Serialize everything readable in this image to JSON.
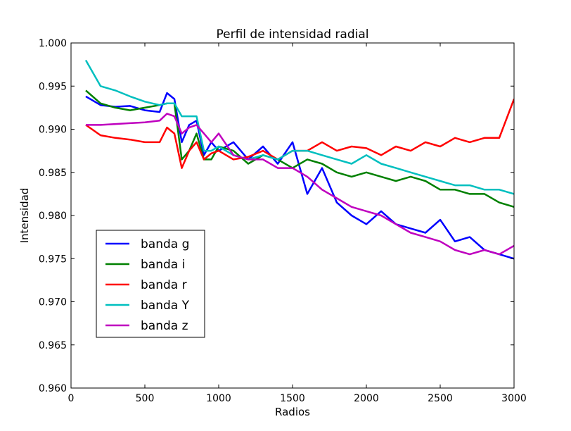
{
  "chart_data": {
    "type": "line",
    "title": "Perfil de intensidad radial",
    "xlabel": "Radios",
    "ylabel": "Intensidad",
    "xlim": [
      0,
      3000
    ],
    "ylim": [
      0.96,
      1.0
    ],
    "xticks": [
      0,
      500,
      1000,
      1500,
      2000,
      2500,
      3000
    ],
    "xtick_labels": [
      "0",
      "500",
      "1000",
      "1500",
      "2000",
      "2500",
      "3000"
    ],
    "yticks": [
      0.96,
      0.965,
      0.97,
      0.975,
      0.98,
      0.985,
      0.99,
      0.995,
      1.0
    ],
    "ytick_labels": [
      "0.960",
      "0.965",
      "0.970",
      "0.975",
      "0.980",
      "0.985",
      "0.990",
      "0.995",
      "1.000"
    ],
    "grid": false,
    "legend_position": "lower-left",
    "x": [
      100,
      200,
      300,
      400,
      500,
      600,
      650,
      700,
      750,
      800,
      850,
      900,
      950,
      1000,
      1100,
      1200,
      1300,
      1400,
      1500,
      1600,
      1700,
      1800,
      1900,
      2000,
      2100,
      2200,
      2300,
      2400,
      2500,
      2600,
      2700,
      2800,
      2900,
      3000
    ],
    "series": [
      {
        "name": "banda g",
        "color": "#0000ff",
        "values": [
          0.9938,
          0.9928,
          0.9926,
          0.9927,
          0.9922,
          0.992,
          0.9942,
          0.9935,
          0.9885,
          0.9905,
          0.991,
          0.987,
          0.9885,
          0.9875,
          0.9885,
          0.9865,
          0.988,
          0.986,
          0.9885,
          0.9825,
          0.9855,
          0.9815,
          0.98,
          0.979,
          0.9805,
          0.979,
          0.9785,
          0.978,
          0.9795,
          0.977,
          0.9775,
          0.976,
          0.9755,
          0.975
        ]
      },
      {
        "name": "banda i",
        "color": "#008000",
        "values": [
          0.9945,
          0.993,
          0.9925,
          0.9922,
          0.9925,
          0.9928,
          0.993,
          0.993,
          0.9865,
          0.9875,
          0.9895,
          0.9865,
          0.9865,
          0.988,
          0.9875,
          0.986,
          0.987,
          0.9865,
          0.9855,
          0.9865,
          0.986,
          0.985,
          0.9845,
          0.985,
          0.9845,
          0.984,
          0.9845,
          0.984,
          0.983,
          0.983,
          0.9825,
          0.9825,
          0.9815,
          0.981
        ]
      },
      {
        "name": "banda r",
        "color": "#ff0000",
        "values": [
          0.9905,
          0.9893,
          0.989,
          0.9888,
          0.9885,
          0.9885,
          0.9902,
          0.9895,
          0.9855,
          0.9875,
          0.9885,
          0.9865,
          0.9872,
          0.9875,
          0.9865,
          0.9868,
          0.9875,
          0.9865,
          0.9875,
          0.9875,
          0.9885,
          0.9875,
          0.988,
          0.9878,
          0.987,
          0.988,
          0.9875,
          0.9885,
          0.988,
          0.989,
          0.9885,
          0.989,
          0.989,
          0.9935
        ]
      },
      {
        "name": "banda Y",
        "color": "#00bfbf",
        "values": [
          0.998,
          0.995,
          0.9945,
          0.9938,
          0.9932,
          0.9928,
          0.993,
          0.993,
          0.9915,
          0.9915,
          0.9915,
          0.9875,
          0.9875,
          0.988,
          0.987,
          0.9865,
          0.987,
          0.9865,
          0.9875,
          0.9875,
          0.987,
          0.9865,
          0.986,
          0.987,
          0.986,
          0.9855,
          0.985,
          0.9845,
          0.984,
          0.9835,
          0.9835,
          0.983,
          0.983,
          0.9825
        ]
      },
      {
        "name": "banda z",
        "color": "#bf00bf",
        "values": [
          0.9905,
          0.9905,
          0.9906,
          0.9907,
          0.9908,
          0.991,
          0.9918,
          0.9915,
          0.9895,
          0.9902,
          0.9905,
          0.9895,
          0.9885,
          0.9895,
          0.987,
          0.9865,
          0.9865,
          0.9855,
          0.9855,
          0.9845,
          0.983,
          0.982,
          0.981,
          0.9805,
          0.98,
          0.979,
          0.978,
          0.9775,
          0.977,
          0.976,
          0.9755,
          0.976,
          0.9755,
          0.9765
        ]
      }
    ]
  }
}
